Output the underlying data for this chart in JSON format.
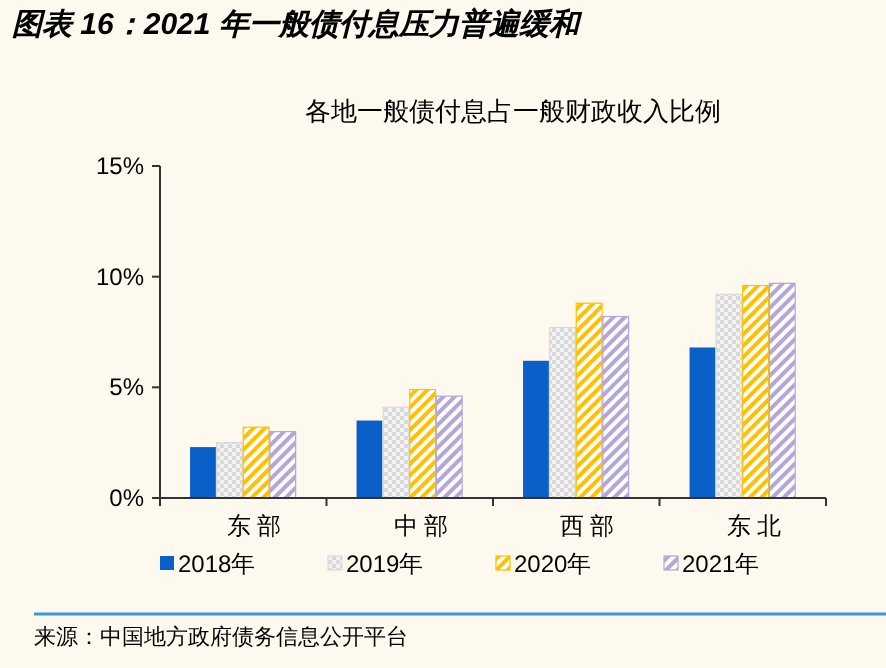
{
  "chart_data": {
    "type": "bar",
    "title": "图表 16：2021 年一般债付息压力普遍缓和",
    "subtitle": "各地一般债付息占一般财政收入比例",
    "categories": [
      "东部",
      "中部",
      "西部",
      "东北"
    ],
    "series": [
      {
        "name": "2018年",
        "color": "#0a5fc8",
        "values": [
          2.3,
          3.5,
          6.2,
          6.8
        ]
      },
      {
        "name": "2019年",
        "color": "#d9d9d9",
        "values": [
          2.5,
          4.1,
          7.7,
          9.2
        ]
      },
      {
        "name": "2020年",
        "color": "#ffc000",
        "values": [
          3.2,
          4.9,
          8.8,
          9.6
        ]
      },
      {
        "name": "2021年",
        "color": "#b4a7d6",
        "values": [
          3.0,
          4.6,
          8.2,
          9.7
        ]
      }
    ],
    "ylim": [
      0,
      15
    ],
    "yticks": [
      {
        "value": 0,
        "label": "0%"
      },
      {
        "value": 5,
        "label": "5%"
      },
      {
        "value": 10,
        "label": "10%"
      },
      {
        "value": 15,
        "label": "15%"
      }
    ],
    "grid": false,
    "legend": "bottom",
    "annotations": [
      "来源：中国地方政府债务信息公开平台"
    ]
  }
}
